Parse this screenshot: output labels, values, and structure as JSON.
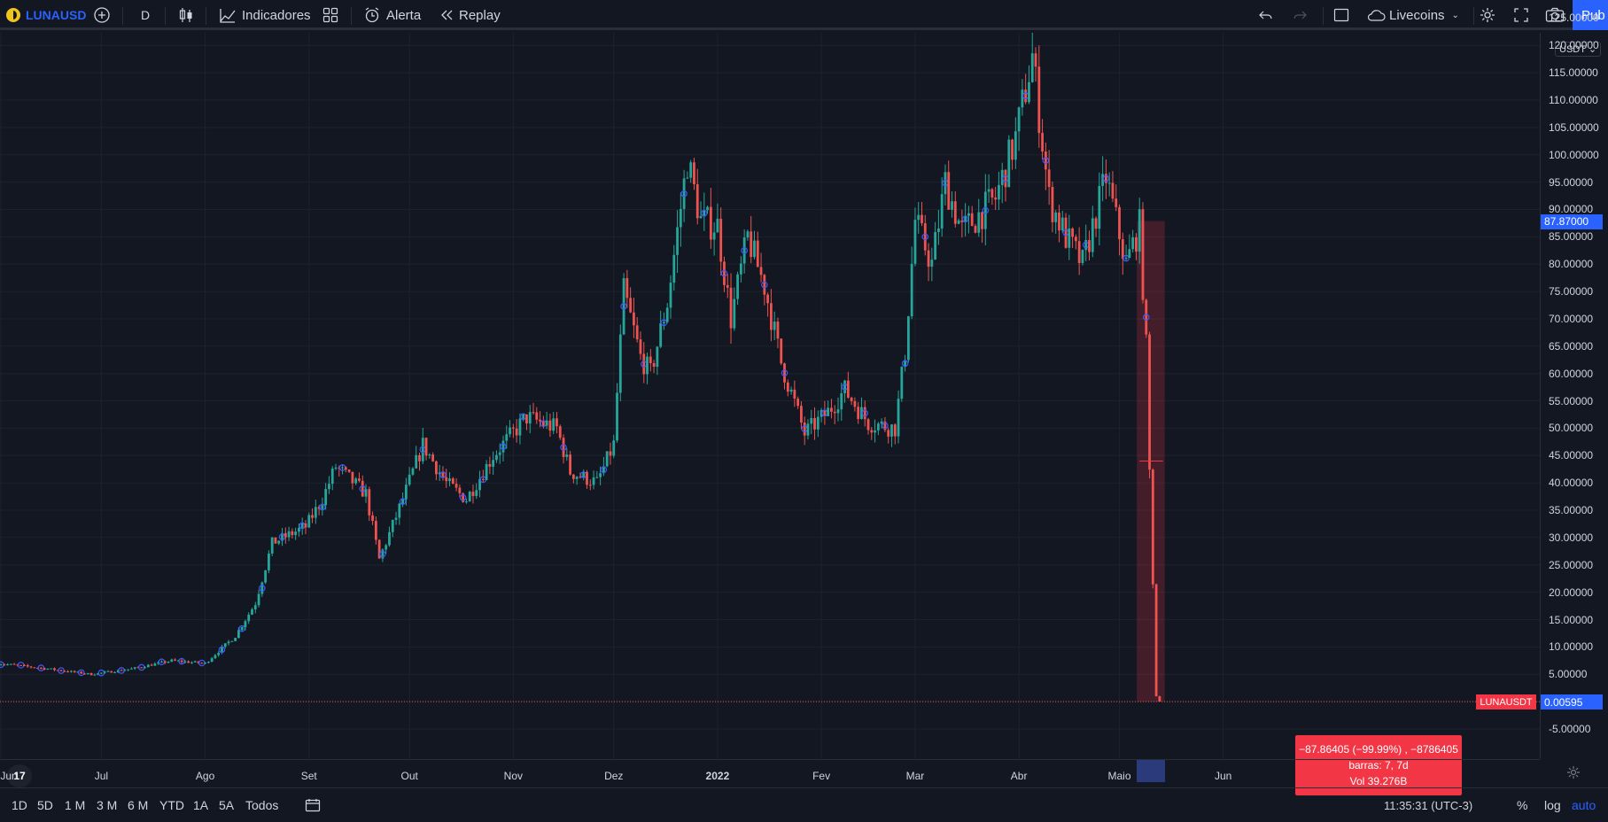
{
  "toolbar": {
    "symbol": "LUNAUSD",
    "interval": "D",
    "indicators_label": "Indicadores",
    "alert_label": "Alerta",
    "replay_label": "Replay",
    "theme_label": "Livecoins",
    "publish_label": "Pub"
  },
  "price_axis": {
    "currency": "USDT",
    "levels": [
      "125.00000",
      "120.00000",
      "115.00000",
      "110.00000",
      "105.00000",
      "100.00000",
      "95.00000",
      "90.00000",
      "85.00000",
      "80.00000",
      "75.00000",
      "70.00000",
      "65.00000",
      "60.00000",
      "55.00000",
      "50.00000",
      "45.00000",
      "40.00000",
      "35.00000",
      "30.00000",
      "25.00000",
      "20.00000",
      "15.00000",
      "10.00000",
      "5.00000",
      "0.00000",
      "-5.00000"
    ],
    "last_price_tag": "0.00595",
    "start_price_tag": "87.87000",
    "symbol_tag": "LUNAUSDT"
  },
  "time_axis": {
    "labels": [
      {
        "text": "Jun",
        "bold": false
      },
      {
        "text": "Jul",
        "bold": false
      },
      {
        "text": "Ago",
        "bold": false
      },
      {
        "text": "Set",
        "bold": false
      },
      {
        "text": "Out",
        "bold": false
      },
      {
        "text": "Nov",
        "bold": false
      },
      {
        "text": "Dez",
        "bold": false
      },
      {
        "text": "2022",
        "bold": true
      },
      {
        "text": "Fev",
        "bold": false
      },
      {
        "text": "Mar",
        "bold": false
      },
      {
        "text": "Abr",
        "bold": false
      },
      {
        "text": "Maio",
        "bold": false
      },
      {
        "text": "Jun",
        "bold": false
      }
    ]
  },
  "measure": {
    "line1": "−87.86405 (−99.99%) , −8786405",
    "line2": "barras: 7, 7d",
    "line3": "Vol 39.276B"
  },
  "bottombar": {
    "ranges": [
      "1D",
      "5D",
      "1 M",
      "3 M",
      "6 M",
      "YTD",
      "1A",
      "5A",
      "Todos"
    ],
    "clock": "11:35:31 (UTC-3)",
    "percent_label": "%",
    "log_label": "log",
    "auto_label": "auto"
  },
  "logo_text": "17",
  "colors": {
    "up": "#26a69a",
    "down": "#ef5350",
    "accent": "#2962ff",
    "bg": "#131722",
    "grid": "#1e222d"
  },
  "chart_data": {
    "type": "candlestick",
    "symbol": "LUNAUSD",
    "interval": "D",
    "x_range": [
      "2021-05-31",
      "2022-06-05"
    ],
    "ylim": [
      -8,
      126
    ],
    "grid": true,
    "anchors": [
      [
        "2021-05-31",
        7
      ],
      [
        "2021-06-15",
        6
      ],
      [
        "2021-06-28",
        5
      ],
      [
        "2021-07-10",
        6
      ],
      [
        "2021-07-22",
        7.5
      ],
      [
        "2021-08-01",
        7
      ],
      [
        "2021-08-10",
        12
      ],
      [
        "2021-08-16",
        18
      ],
      [
        "2021-08-21",
        29
      ],
      [
        "2021-08-31",
        32
      ],
      [
        "2021-09-05",
        37
      ],
      [
        "2021-09-09",
        43
      ],
      [
        "2021-09-18",
        38
      ],
      [
        "2021-09-22",
        26
      ],
      [
        "2021-09-29",
        37
      ],
      [
        "2021-10-05",
        47
      ],
      [
        "2021-10-12",
        40
      ],
      [
        "2021-10-18",
        37
      ],
      [
        "2021-10-26",
        45
      ],
      [
        "2021-11-05",
        52
      ],
      [
        "2021-11-14",
        50
      ],
      [
        "2021-11-18",
        42
      ],
      [
        "2021-11-26",
        40
      ],
      [
        "2021-12-01",
        47
      ],
      [
        "2021-12-04",
        75
      ],
      [
        "2021-12-09",
        63
      ],
      [
        "2021-12-12",
        60
      ],
      [
        "2021-12-17",
        73
      ],
      [
        "2021-12-23",
        99
      ],
      [
        "2021-12-27",
        88
      ],
      [
        "2022-01-01",
        87
      ],
      [
        "2022-01-05",
        70
      ],
      [
        "2022-01-10",
        85
      ],
      [
        "2022-01-15",
        76
      ],
      [
        "2022-01-20",
        62
      ],
      [
        "2022-01-27",
        49
      ],
      [
        "2022-02-03",
        53
      ],
      [
        "2022-02-08",
        57
      ],
      [
        "2022-02-15",
        51
      ],
      [
        "2022-02-23",
        50
      ],
      [
        "2022-02-26",
        64
      ],
      [
        "2022-03-01",
        88
      ],
      [
        "2022-03-06",
        80
      ],
      [
        "2022-03-10",
        95
      ],
      [
        "2022-03-15",
        86
      ],
      [
        "2022-03-25",
        92
      ],
      [
        "2022-03-31",
        103
      ],
      [
        "2022-04-05",
        118
      ],
      [
        "2022-04-10",
        92
      ],
      [
        "2022-04-15",
        85
      ],
      [
        "2022-04-20",
        80
      ],
      [
        "2022-04-27",
        96
      ],
      [
        "2022-05-03",
        80
      ],
      [
        "2022-05-07",
        87
      ],
      [
        "2022-05-09",
        65
      ],
      [
        "2022-05-10",
        42
      ],
      [
        "2022-05-11",
        22
      ],
      [
        "2022-05-12",
        1
      ],
      [
        "2022-05-13",
        0.006
      ]
    ],
    "measure": {
      "start_price": 87.87,
      "end_price": 0.00595,
      "change": -87.86405,
      "change_percent": -99.99,
      "bars": 7,
      "days": 7,
      "volume": "39.276B"
    }
  }
}
